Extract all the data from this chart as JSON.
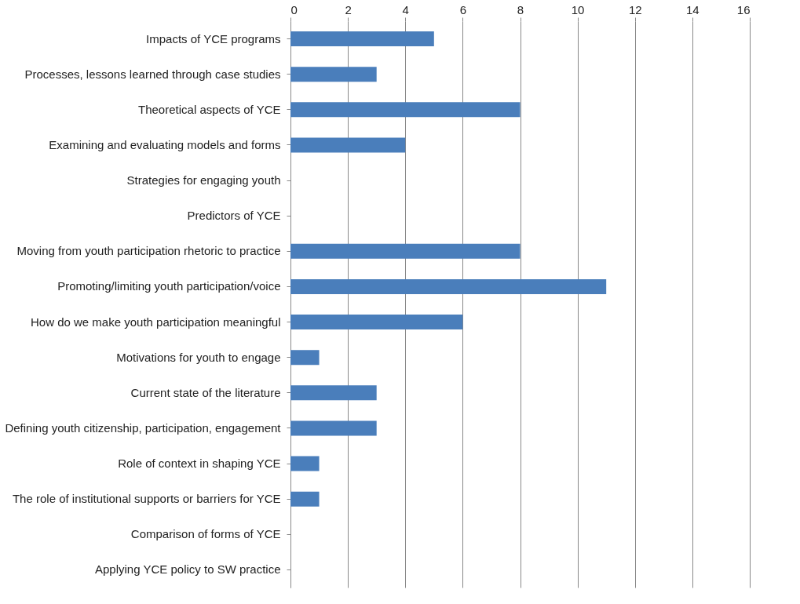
{
  "chart_data": {
    "type": "bar",
    "orientation": "horizontal",
    "categories": [
      "Impacts of YCE programs",
      "Processes, lessons learned through case studies",
      "Theoretical aspects of YCE",
      "Examining and evaluating models and forms",
      "Strategies for engaging youth",
      "Predictors of YCE",
      "Moving from youth participation rhetoric to practice",
      "Promoting/limiting youth participation/voice",
      "How do we make youth participation meaningful",
      "Motivations for youth to engage",
      "Current state of the literature",
      "Defining youth citizenship, participation, engagement",
      "Role of context in shaping YCE",
      "The role of institutional supports or barriers for YCE",
      "Comparison of forms of YCE",
      "Applying YCE policy to SW practice"
    ],
    "values": [
      5,
      3,
      8,
      4,
      0,
      0,
      8,
      11,
      6,
      1,
      3,
      3,
      1,
      1,
      0,
      0
    ],
    "color": "#4a7ebb",
    "xlim": [
      0,
      16
    ],
    "xticks": [
      0,
      2,
      4,
      6,
      8,
      10,
      12,
      14,
      16
    ],
    "grid": "x"
  }
}
